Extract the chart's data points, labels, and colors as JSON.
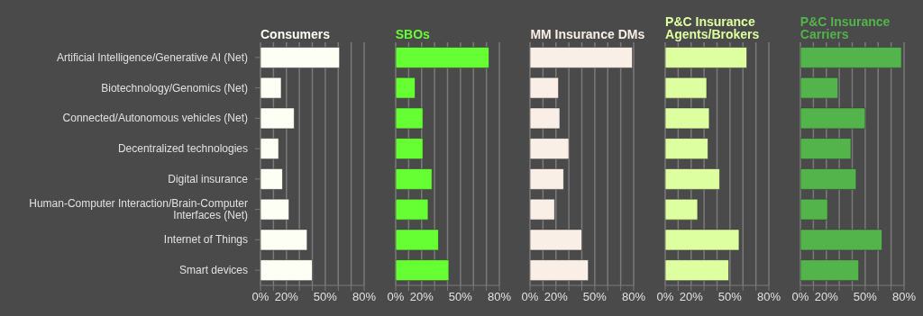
{
  "chart_data": [
    {
      "type": "bar",
      "orientation": "horizontal",
      "title": "Consumers",
      "categories": [
        "Artificial Intelligence/Generative AI (Net)",
        "Biotechnology/Genomics (Net)",
        "Connected/Autonomous vehicles (Net)",
        "Decentralized technologies",
        "Digital insurance",
        "Human-Computer Interaction/Brain-Computer Interfaces (Net)",
        "Internet of Things",
        "Smart devices"
      ],
      "values": [
        61,
        16,
        26,
        14,
        17,
        22,
        36,
        40
      ],
      "color": "#fdfff5",
      "xlim": [
        0,
        80
      ],
      "xticks": [
        {
          "value": 0,
          "label": "0%"
        },
        {
          "value": 10,
          "label": null
        },
        {
          "value": 20,
          "label": "20%"
        },
        {
          "value": 30,
          "label": null
        },
        {
          "value": 40,
          "label": null
        },
        {
          "value": 50,
          "label": "50%"
        },
        {
          "value": 60,
          "label": null
        },
        {
          "value": 70,
          "label": null
        },
        {
          "value": 80,
          "label": "80%"
        }
      ],
      "grid": "x"
    },
    {
      "type": "bar",
      "orientation": "horizontal",
      "title": "SBOs",
      "categories": [
        null,
        null,
        null,
        null,
        null,
        null,
        null,
        null
      ],
      "values": [
        72,
        15,
        21,
        21,
        28,
        25,
        33,
        41
      ],
      "color": "#66ff33",
      "xlim": [
        0,
        80
      ],
      "xticks": [
        {
          "value": 0,
          "label": "0%"
        },
        {
          "value": 10,
          "label": null
        },
        {
          "value": 20,
          "label": "20%"
        },
        {
          "value": 30,
          "label": null
        },
        {
          "value": 40,
          "label": null
        },
        {
          "value": 50,
          "label": "50%"
        },
        {
          "value": 60,
          "label": null
        },
        {
          "value": 70,
          "label": null
        },
        {
          "value": 80,
          "label": "80%"
        }
      ],
      "grid": "x",
      "tick_labels": "x"
    },
    {
      "type": "bar",
      "orientation": "horizontal",
      "title": "MM Insurance DMs",
      "categories": [
        null,
        null,
        null,
        null,
        null,
        null,
        null,
        null
      ],
      "values": [
        79,
        22,
        23,
        30,
        26,
        19,
        40,
        45
      ],
      "color": "#f9efe6",
      "xlim": [
        0,
        80
      ],
      "xticks": [
        {
          "value": 0,
          "label": "0%"
        },
        {
          "value": 10,
          "label": null
        },
        {
          "value": 20,
          "label": "20%"
        },
        {
          "value": 30,
          "label": null
        },
        {
          "value": 40,
          "label": null
        },
        {
          "value": 50,
          "label": "50%"
        },
        {
          "value": 60,
          "label": null
        },
        {
          "value": 70,
          "label": null
        },
        {
          "value": 80,
          "label": "80%"
        }
      ],
      "grid": "x",
      "tick_labels": "x"
    },
    {
      "type": "bar",
      "orientation": "horizontal",
      "title": "P&C Insurance Agents/Brokers",
      "categories": [
        null,
        null,
        null,
        null,
        null,
        null,
        null,
        null
      ],
      "values": [
        63,
        32,
        34,
        33,
        42,
        25,
        57,
        49
      ],
      "color": "#ddffa0",
      "xlim": [
        0,
        80
      ],
      "xticks": [
        {
          "value": 0,
          "label": "0%"
        },
        {
          "value": 10,
          "label": null
        },
        {
          "value": 20,
          "label": "20%"
        },
        {
          "value": 30,
          "label": null
        },
        {
          "value": 40,
          "label": null
        },
        {
          "value": 50,
          "label": "50%"
        },
        {
          "value": 60,
          "label": null
        },
        {
          "value": 70,
          "label": null
        },
        {
          "value": 80,
          "label": "80%"
        }
      ],
      "grid": "x",
      "tick_labels": "x"
    },
    {
      "type": "bar",
      "orientation": "horizontal",
      "title": "P&C Insurance Carriers",
      "categories": [
        null,
        null,
        null,
        null,
        null,
        null,
        null,
        null
      ],
      "values": [
        78,
        29,
        50,
        39,
        43,
        21,
        63,
        45
      ],
      "color": "#52b44a",
      "xlim": [
        0,
        80
      ],
      "xticks": [
        {
          "value": 0,
          "label": "0%"
        },
        {
          "value": 10,
          "label": null
        },
        {
          "value": 20,
          "label": "20%"
        },
        {
          "value": 30,
          "label": null
        },
        {
          "value": 40,
          "label": null
        },
        {
          "value": 50,
          "label": "50%"
        },
        {
          "value": 60,
          "label": null
        },
        {
          "value": 70,
          "label": null
        },
        {
          "value": 80,
          "label": "80%"
        }
      ],
      "grid": "x",
      "tick_labels": "x"
    }
  ]
}
